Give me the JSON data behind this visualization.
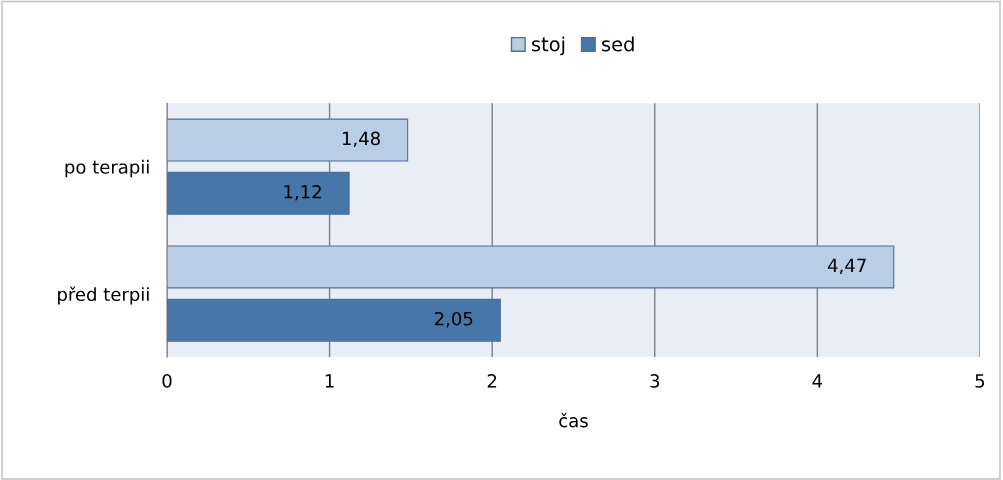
{
  "chart_data": {
    "type": "bar",
    "orientation": "horizontal",
    "xlabel": "čas",
    "categories": [
      "po terapii",
      "před terpii"
    ],
    "series": [
      {
        "name": "stoj",
        "color": "#b9cde5",
        "values": [
          1.48,
          4.47
        ],
        "value_labels": [
          "1,48",
          "4,47"
        ]
      },
      {
        "name": "sed",
        "color": "#4677a8",
        "values": [
          1.12,
          2.05
        ],
        "value_labels": [
          "1,12",
          "2,05"
        ]
      }
    ],
    "xlim": [
      0,
      5
    ],
    "xticks": [
      0,
      1,
      2,
      3,
      4,
      5
    ],
    "grid": "x",
    "legend": "top"
  }
}
